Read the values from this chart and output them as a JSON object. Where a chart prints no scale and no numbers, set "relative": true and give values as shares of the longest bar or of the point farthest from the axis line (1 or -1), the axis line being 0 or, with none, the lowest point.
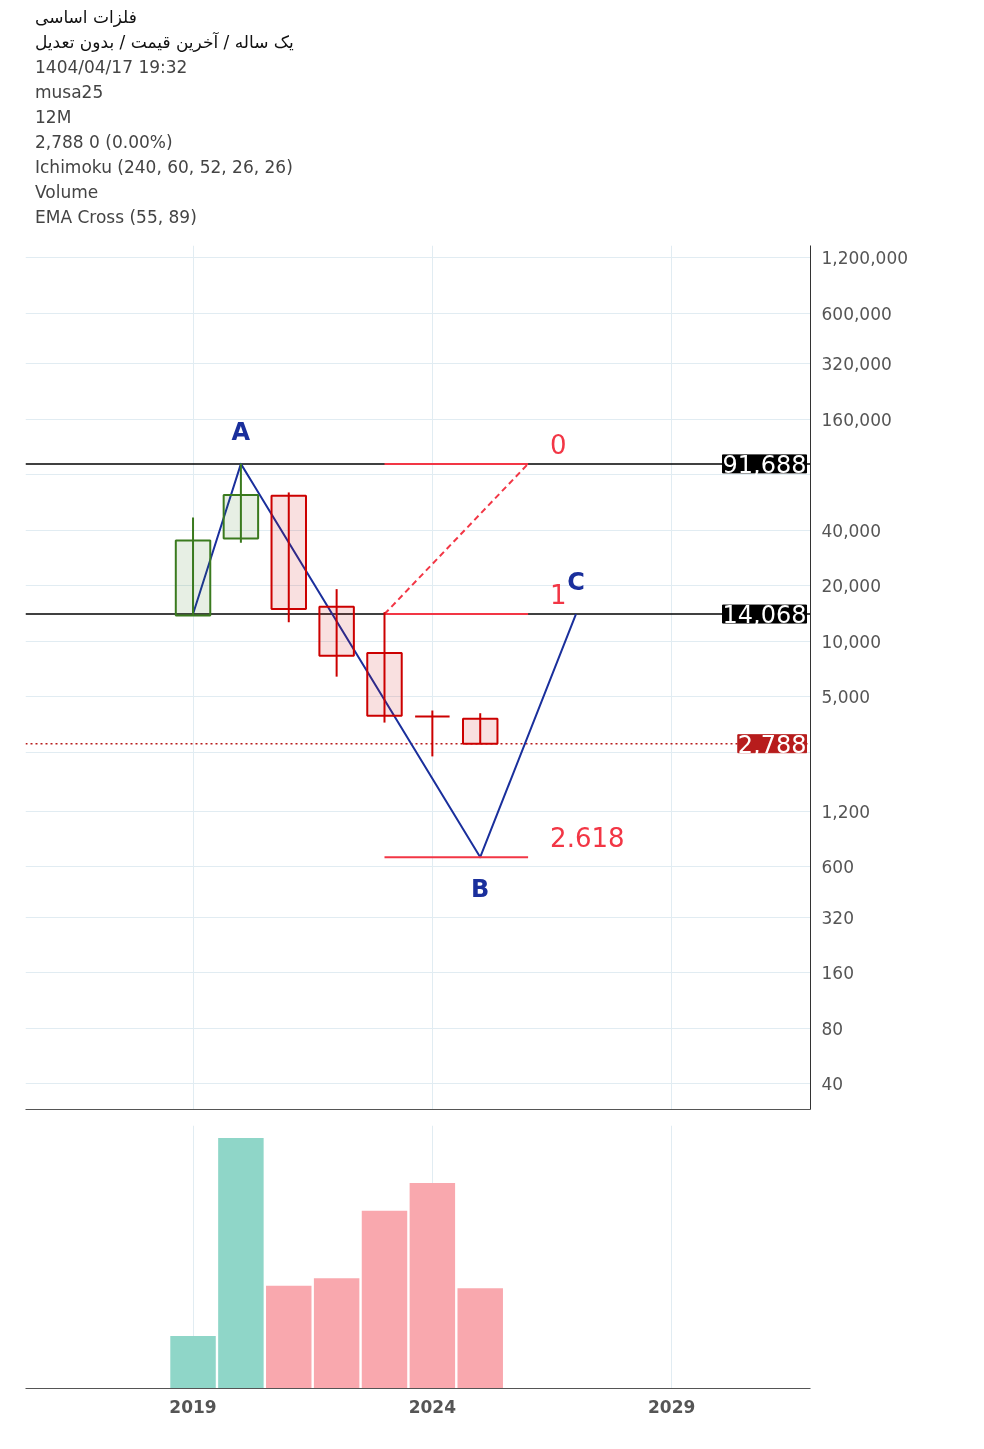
{
  "chart_data": [
    {
      "type": "candlestick",
      "title": "فلزات اساسی",
      "subtitle": "یک ساله / آخرین قیمت / بدون تعدیل",
      "annotations": [
        "1404/04/17 19:32",
        "musa25",
        "12M",
        "2,788  0 (0.00%)",
        "Ichimoku (240, 60, 52, 26, 26)",
        "Volume",
        "EMA Cross (55, 89)",
        {
          "text": "A",
          "x": 2020,
          "y": 91688
        },
        {
          "text": "B",
          "x": 2025,
          "y": 676
        },
        {
          "text": "C",
          "x": 2027,
          "y": 14068
        }
      ],
      "x": [
        2019,
        2020,
        2021,
        2022,
        2023,
        2024,
        2025
      ],
      "ohlc": [
        [
          13800,
          47000,
          13800,
          35200
        ],
        [
          36100,
          92000,
          34300,
          62100
        ],
        [
          61600,
          64200,
          12700,
          15000
        ],
        [
          15400,
          19200,
          6440,
          8370
        ],
        [
          8660,
          14400,
          3630,
          3950
        ],
        [
          3910,
          4220,
          2380,
          3910
        ],
        [
          3810,
          4080,
          2788,
          2788
        ]
      ],
      "colors": [
        "#3a7a1e",
        "#3a7a1e",
        "#cc0000",
        "#cc0000",
        "#cc0000",
        "#cc0000",
        "#cc0000"
      ],
      "series": [
        {
          "type": "line",
          "color": "#1a2f9c",
          "x": [
            2019,
            2020,
            2025,
            2027
          ],
          "values": [
            14068,
            91688,
            676,
            14068
          ]
        },
        {
          "type": "line",
          "name": "0",
          "color": "#f23645",
          "x": [
            2023,
            2026
          ],
          "values": [
            91688,
            91688
          ]
        },
        {
          "type": "line",
          "name": "1",
          "color": "#f23645",
          "x": [
            2023,
            2026
          ],
          "values": [
            14068,
            14068
          ]
        },
        {
          "type": "line",
          "name": "2.618",
          "color": "#f23645",
          "x": [
            2023,
            2026
          ],
          "values": [
            676,
            676
          ]
        },
        {
          "type": "line",
          "color": "#f23645",
          "line_style": "dashed",
          "x": [
            2023,
            2026
          ],
          "values": [
            14068,
            91688
          ]
        }
      ],
      "ref_lines": [
        {
          "axis": "y",
          "value": 91688,
          "label": "91,688",
          "color": "#000000"
        },
        {
          "axis": "y",
          "value": 14068,
          "label": "14,068",
          "color": "#000000"
        },
        {
          "axis": "y",
          "value": 2788,
          "label": "2,788",
          "color": "#b71c1c",
          "line_style": "dotted"
        }
      ],
      "log": true,
      "xlim": [
        2015.5,
        2031.9
      ],
      "ylim": [
        29,
        1400000
      ],
      "xticks": [
        2019,
        2024,
        2029
      ],
      "yticks": [
        {
          "value": 1200000,
          "label": "1,200,000"
        },
        {
          "value": 600000,
          "label": "600,000"
        },
        {
          "value": 320000,
          "label": "320,000"
        },
        {
          "value": 160000,
          "label": "160,000"
        },
        {
          "value": 80000,
          "label": null
        },
        {
          "value": 40000,
          "label": "40,000"
        },
        {
          "value": 20000,
          "label": "20,000"
        },
        {
          "value": 10000,
          "label": "10,000"
        },
        {
          "value": 5000,
          "label": "5,000"
        },
        {
          "value": 2500,
          "label": null
        },
        {
          "value": 1200,
          "label": "1,200"
        },
        {
          "value": 600,
          "label": "600"
        },
        {
          "value": 320,
          "label": "320"
        },
        {
          "value": 160,
          "label": "160"
        },
        {
          "value": 80,
          "label": "80"
        },
        {
          "value": 40,
          "label": "40"
        }
      ],
      "grid": true,
      "tick_labels": "y"
    },
    {
      "type": "bar",
      "relative": true,
      "x": [
        2019,
        2020,
        2021,
        2022,
        2023,
        2024,
        2025
      ],
      "values": [
        0.21,
        1,
        0.41,
        0.44,
        0.71,
        0.82,
        0.4
      ],
      "colors": [
        "#8fd6c8",
        "#8fd6c8",
        "#f9a8ae",
        "#f9a8ae",
        "#f9a8ae",
        "#f9a8ae",
        "#f9a8ae"
      ],
      "xlim": [
        2015.5,
        2031.9
      ],
      "xticks": [
        2019,
        2024,
        2029
      ],
      "grid": "x",
      "tick_labels": "x"
    }
  ]
}
